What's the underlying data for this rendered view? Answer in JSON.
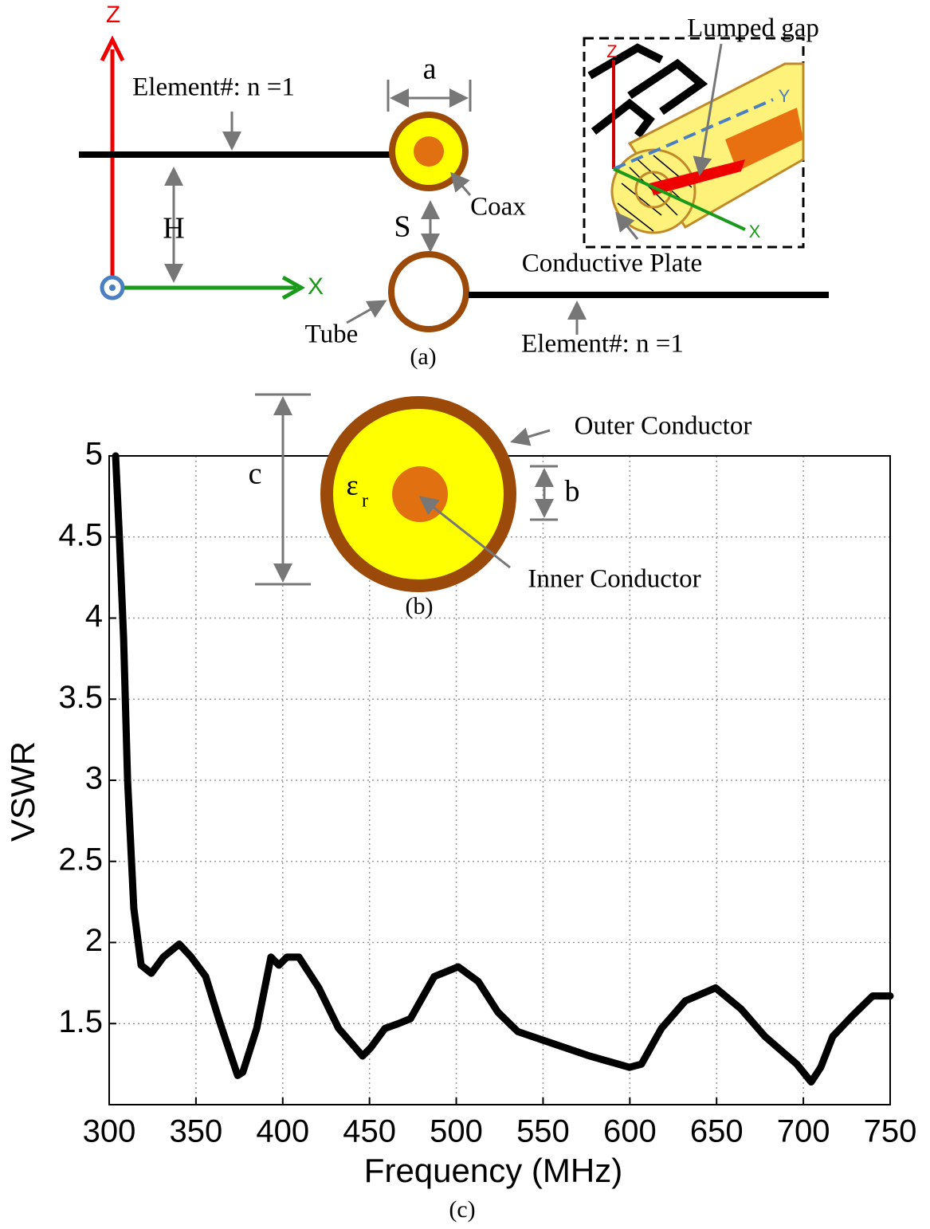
{
  "diagram_a": {
    "z_axis": "Z",
    "x_axis": "X",
    "element_top": "Element#:  n =1",
    "dim_a": "a",
    "dim_h": "H",
    "dim_s": "S",
    "coax": "Coax",
    "tube": "Tube",
    "element_bottom": "Element#:  n =1",
    "caption": "(a)",
    "lumped_gap": "Lumped gap",
    "conductive_plate": "Conductive Plate",
    "inset_z": "Z",
    "inset_y": "Y",
    "inset_x": "X"
  },
  "diagram_b": {
    "dim_c": "c",
    "epsilon": "ε",
    "epsilon_sub": "r",
    "dim_b": "b",
    "outer_conductor": "Outer Conductor",
    "inner_conductor": "Inner Conductor",
    "caption": "(b)"
  },
  "chart_data": {
    "type": "line",
    "x_label": "Frequency (MHz)",
    "y_label": "VSWR",
    "caption": "(c)",
    "x": [
      303.7,
      306,
      308.3,
      310.6,
      314.2,
      318.4,
      324.3,
      331.2,
      340.4,
      347.3,
      355.6,
      363.4,
      374,
      377,
      385,
      393.2,
      397.8,
      402.4,
      409.3,
      420.8,
      432.2,
      446,
      450.6,
      458.9,
      466.7,
      473.6,
      487.3,
      501.1,
      512.6,
      524,
      535.5,
      549.3,
      576.9,
      599.8,
      606.7,
      618.2,
      632,
      649.4,
      664.1,
      677.9,
      696.2,
      704.5,
      710,
      716.9,
      728.4,
      739.9,
      750
    ],
    "values": [
      5.0,
      4.47,
      3.88,
      3.0,
      2.21,
      1.86,
      1.81,
      1.91,
      1.99,
      1.91,
      1.79,
      1.52,
      1.18,
      1.2,
      1.47,
      1.91,
      1.86,
      1.91,
      1.91,
      1.72,
      1.47,
      1.3,
      1.35,
      1.47,
      1.5,
      1.53,
      1.79,
      1.85,
      1.76,
      1.57,
      1.45,
      1.4,
      1.3,
      1.23,
      1.25,
      1.47,
      1.64,
      1.72,
      1.59,
      1.42,
      1.25,
      1.14,
      1.23,
      1.42,
      1.55,
      1.67,
      1.67
    ],
    "color": "#000000",
    "grid": true,
    "xlim": [
      300,
      750
    ],
    "xticks": [
      300,
      350,
      400,
      450,
      500,
      550,
      600,
      650,
      700,
      750
    ],
    "ylim": [
      1,
      5
    ],
    "yticks": [
      1.5,
      2,
      2.5,
      3,
      3.5,
      4,
      4.5,
      5
    ]
  }
}
